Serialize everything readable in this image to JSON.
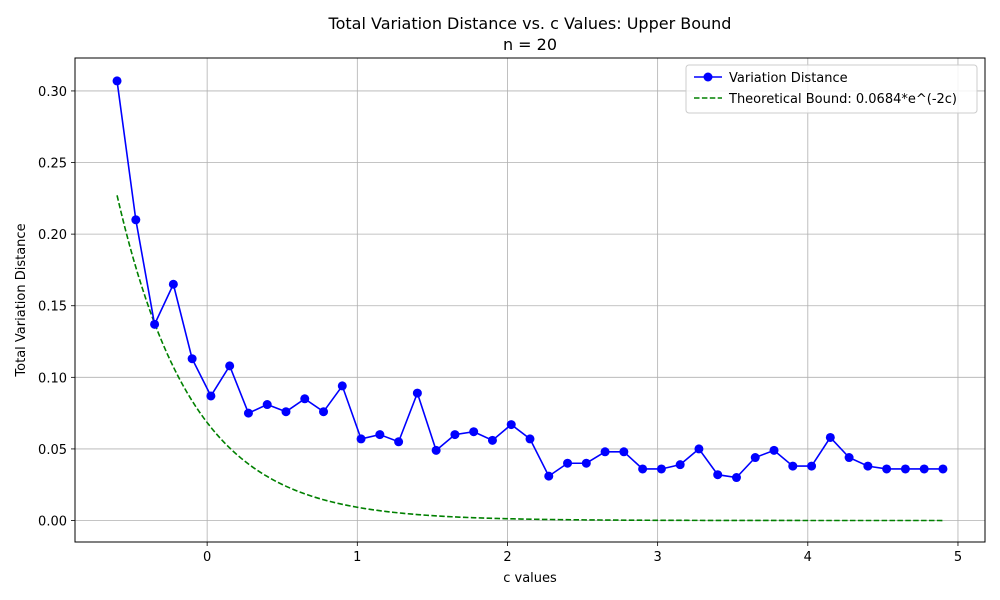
{
  "chart_data": {
    "type": "line",
    "title": "Total Variation Distance vs. c Values: Upper Bound",
    "subtitle": "n = 20",
    "xlabel": "c values",
    "ylabel": "Total Variation Distance",
    "xlim": [
      -0.88,
      5.18
    ],
    "ylim": [
      -0.015,
      0.323
    ],
    "x_ticks": [
      0,
      1,
      2,
      3,
      4,
      5
    ],
    "x_tick_labels": [
      "0",
      "1",
      "2",
      "3",
      "4",
      "5"
    ],
    "y_ticks": [
      0.0,
      0.05,
      0.1,
      0.15,
      0.2,
      0.25,
      0.3
    ],
    "y_tick_labels": [
      "0.00",
      "0.05",
      "0.10",
      "0.15",
      "0.20",
      "0.25",
      "0.30"
    ],
    "grid": true,
    "legend_position": "top-right",
    "series": [
      {
        "name": "Variation Distance",
        "style": "solid-line-with-circle-markers",
        "color": "#0000ff",
        "x": [
          -0.6,
          -0.475,
          -0.35,
          -0.225,
          -0.1,
          0.025,
          0.15,
          0.275,
          0.4,
          0.525,
          0.65,
          0.775,
          0.9,
          1.025,
          1.15,
          1.275,
          1.4,
          1.525,
          1.65,
          1.775,
          1.9,
          2.025,
          2.15,
          2.275,
          2.4,
          2.525,
          2.65,
          2.775,
          2.9,
          3.025,
          3.15,
          3.275,
          3.4,
          3.525,
          3.65,
          3.775,
          3.9,
          4.025,
          4.15,
          4.275,
          4.4,
          4.525,
          4.65,
          4.775,
          4.9
        ],
        "values": [
          0.307,
          0.21,
          0.137,
          0.165,
          0.113,
          0.087,
          0.108,
          0.075,
          0.081,
          0.076,
          0.085,
          0.076,
          0.094,
          0.057,
          0.06,
          0.055,
          0.089,
          0.049,
          0.06,
          0.062,
          0.056,
          0.067,
          0.057,
          0.031,
          0.04,
          0.04,
          0.048,
          0.048,
          0.036,
          0.036,
          0.039,
          0.05,
          0.032,
          0.03,
          0.044,
          0.049,
          0.038,
          0.038,
          0.058,
          0.044,
          0.038,
          0.036,
          0.036,
          0.036,
          0.036
        ]
      },
      {
        "name": "Theoretical Bound: 0.0684*e^(-2c)",
        "style": "dashed-line",
        "color": "#008000",
        "formula": "0.0684*e^(-2c)",
        "x_range": [
          -0.6,
          4.9
        ]
      }
    ]
  }
}
